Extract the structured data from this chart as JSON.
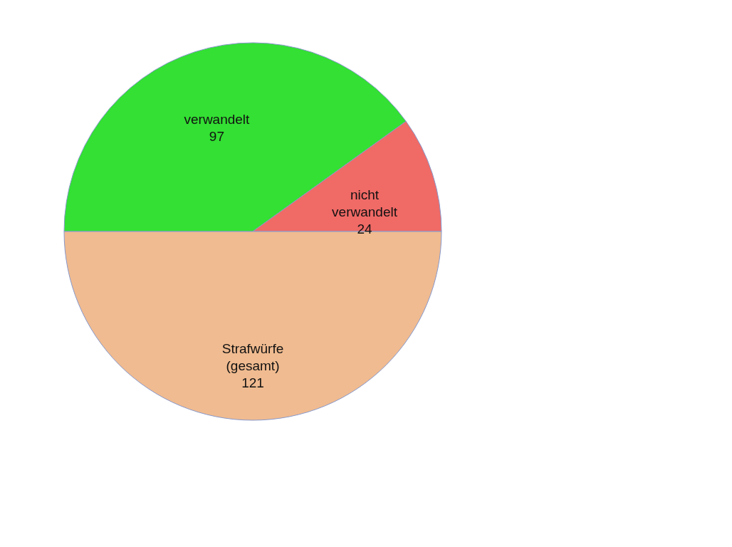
{
  "chart_data": {
    "type": "pie",
    "categories": [
      "verwandelt",
      "nicht verwandelt",
      "Strafwürfe (gesamt)"
    ],
    "values": [
      97,
      24,
      121
    ],
    "colors": [
      "#33e033",
      "#f06a66",
      "#f0bb90"
    ],
    "data_labels": true,
    "legend": false
  }
}
